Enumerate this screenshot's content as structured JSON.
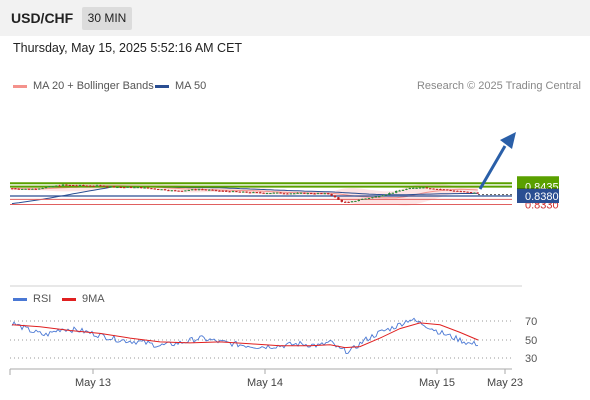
{
  "header": {
    "symbol": "USD/CHF",
    "timeframe": "30 MIN"
  },
  "datetime": "Thursday, May 15, 2025 5:52:16 AM CET",
  "legend": {
    "ma20": {
      "label": "MA 20 + Bollinger Bands",
      "color": "#f4928c"
    },
    "ma50": {
      "label": "MA 50",
      "color": "#2a4e92"
    }
  },
  "credit": "Research © 2025 Trading Central",
  "levels": {
    "resistance": [
      {
        "label": "0.8455",
        "value": 0.8455
      },
      {
        "label": "0.8435",
        "value": 0.8435
      }
    ],
    "support": [
      {
        "label": "0.8360",
        "value": 0.836
      },
      {
        "label": "0.8330",
        "value": 0.833
      }
    ],
    "pivot": {
      "label": "0.8380",
      "value": 0.838
    },
    "last": {
      "label": "0.8388",
      "value": 0.8388
    }
  },
  "indicator_legend": {
    "rsi": {
      "label": "RSI",
      "color": "#4a78d4"
    },
    "ma9": {
      "label": "9MA",
      "color": "#e02020"
    }
  },
  "rsi_levels": [
    "70",
    "50",
    "30"
  ],
  "xaxis_labels": [
    "May 13",
    "May 14",
    "May 15",
    "May 23"
  ],
  "colors": {
    "resistance": "#5aa000",
    "support": "#e06060",
    "pivot": "#2a4e92",
    "bull": "#2a8a3a",
    "bear": "#c02020",
    "band": "#fde4e4",
    "arrow": "#2a5fa8"
  }
}
